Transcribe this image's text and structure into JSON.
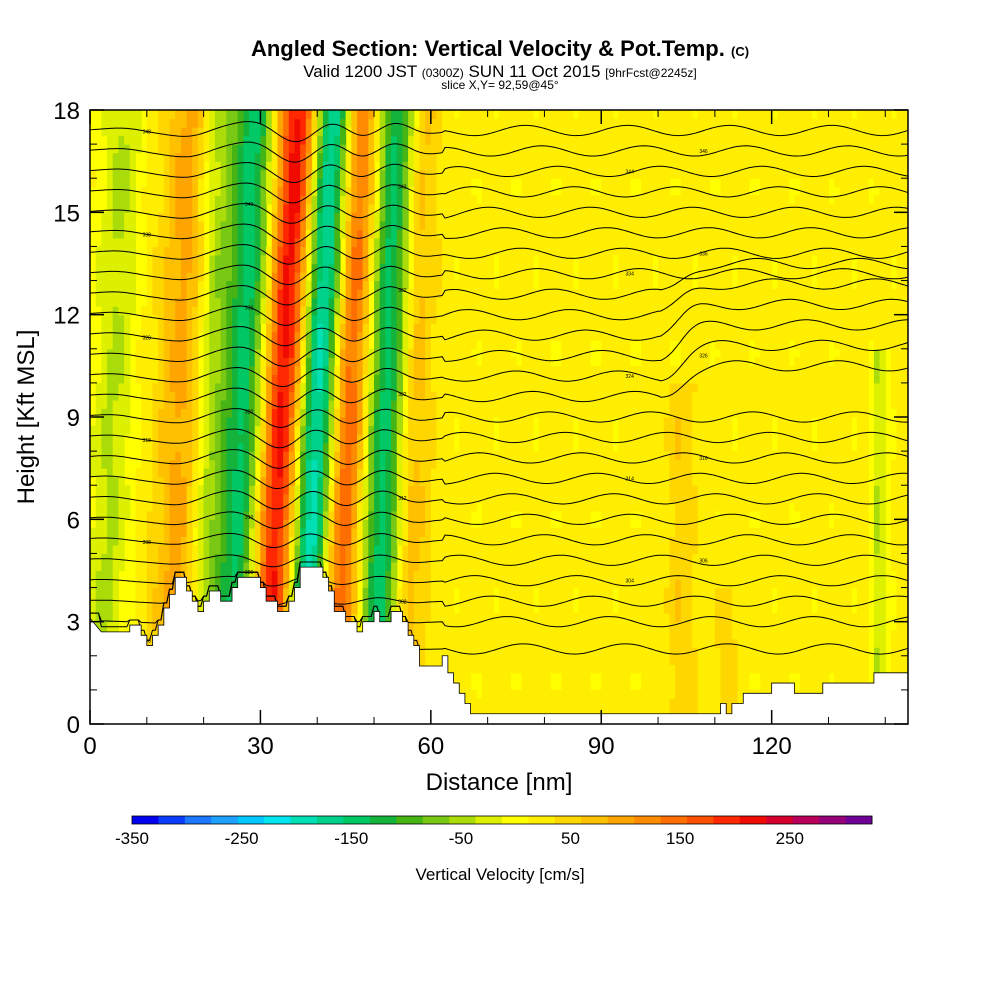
{
  "title": {
    "main": "Angled Section: Vertical Velocity & Pot.Temp.",
    "main_suffix": "(C)",
    "valid_a": "Valid 1200 JST",
    "valid_b": "(0300Z)",
    "valid_c": "SUN 11 Oct 2015",
    "valid_d": "[9hrFcst@2245z]",
    "slice": "slice X,Y= 92,59@45°"
  },
  "chart_data": {
    "type": "heatmap",
    "title": "Angled Section: Vertical Velocity & Pot.Temp.",
    "xlabel": "Distance [nm]",
    "ylabel": "Height [Kft MSL]",
    "xlim": [
      0,
      144
    ],
    "ylim": [
      0,
      18
    ],
    "xticks": [
      "0",
      "30",
      "60",
      "90",
      "120"
    ],
    "xtick_values": [
      0,
      30,
      60,
      90,
      120
    ],
    "yticks": [
      "0",
      "3",
      "6",
      "9",
      "12",
      "15",
      "18"
    ],
    "ytick_values": [
      0,
      3,
      6,
      9,
      12,
      15,
      18
    ],
    "colorbar": {
      "label": "Vertical Velocity [cm/s]",
      "ticks": [
        "-350",
        "-250",
        "-150",
        "-50",
        "50",
        "150",
        "250"
      ],
      "tick_values": [
        -350,
        -250,
        -150,
        -50,
        50,
        150,
        250
      ],
      "range": [
        -350,
        325
      ],
      "colors": [
        "#0000f0",
        "#0a3cff",
        "#1c78ff",
        "#1ea0ff",
        "#00c8ff",
        "#00e6f0",
        "#00e0b4",
        "#00d28c",
        "#00c864",
        "#14b43c",
        "#46b414",
        "#78c814",
        "#aadc0a",
        "#dcf000",
        "#ffff00",
        "#ffee00",
        "#ffd700",
        "#ffc000",
        "#ffa500",
        "#ff8c00",
        "#ff6e00",
        "#ff5000",
        "#ff2800",
        "#f00a00",
        "#d7002d",
        "#b9005a",
        "#960078",
        "#6e0096"
      ]
    },
    "bands": [
      {
        "x": 4,
        "w": 4,
        "tilt": 2,
        "value": -40,
        "zmax": 18
      },
      {
        "x": 9,
        "w": 3,
        "tilt": 2,
        "value": 25,
        "zmax": 18
      },
      {
        "x": 16,
        "w": 4,
        "tilt": 1.5,
        "value": 95,
        "zmax": 18
      },
      {
        "x": 21,
        "w": 3,
        "tilt": 1.5,
        "value": -40,
        "zmax": 18
      },
      {
        "x": 27,
        "w": 4,
        "tilt": 2,
        "value": -150,
        "zmax": 18
      },
      {
        "x": 34,
        "w": 4,
        "tilt": 3,
        "value": 240,
        "zmax": 18
      },
      {
        "x": 40,
        "w": 4,
        "tilt": 3,
        "value": -230,
        "zmax": 18
      },
      {
        "x": 45,
        "w": 3.5,
        "tilt": 2.5,
        "value": 190,
        "zmax": 18
      },
      {
        "x": 52,
        "w": 3.5,
        "tilt": 2,
        "value": -150,
        "zmax": 18
      },
      {
        "x": 57,
        "w": 3,
        "tilt": 1.5,
        "value": 80,
        "zmax": 18
      },
      {
        "x": 139,
        "w": 1.5,
        "tilt": 0,
        "value": -40,
        "zmax": 11
      },
      {
        "x": 104,
        "w": 3,
        "tilt": 0,
        "value": 55,
        "zmax": 10
      },
      {
        "x": 112,
        "w": 2,
        "tilt": 0,
        "value": 55,
        "zmax": 4
      }
    ],
    "terrain": [
      [
        0,
        3.1
      ],
      [
        2,
        2.7
      ],
      [
        7,
        2.7
      ],
      [
        7,
        2.9
      ],
      [
        9,
        2.9
      ],
      [
        9,
        2.6
      ],
      [
        10,
        2.6
      ],
      [
        10,
        2.3
      ],
      [
        11,
        2.3
      ],
      [
        11,
        2.6
      ],
      [
        12,
        2.6
      ],
      [
        12,
        2.9
      ],
      [
        13,
        2.9
      ],
      [
        13,
        3.4
      ],
      [
        14,
        3.4
      ],
      [
        14,
        3.8
      ],
      [
        15,
        3.8
      ],
      [
        15,
        4.3
      ],
      [
        17,
        4.3
      ],
      [
        17,
        3.9
      ],
      [
        18,
        3.9
      ],
      [
        18,
        3.6
      ],
      [
        19,
        3.6
      ],
      [
        19,
        3.3
      ],
      [
        20,
        3.3
      ],
      [
        20,
        3.6
      ],
      [
        21,
        3.6
      ],
      [
        21,
        3.9
      ],
      [
        23,
        3.9
      ],
      [
        23,
        3.6
      ],
      [
        25,
        3.6
      ],
      [
        25,
        4.0
      ],
      [
        26,
        4.0
      ],
      [
        26,
        4.3
      ],
      [
        30,
        4.3
      ],
      [
        30,
        4.0
      ],
      [
        31,
        4.0
      ],
      [
        31,
        3.6
      ],
      [
        33,
        3.6
      ],
      [
        33,
        3.3
      ],
      [
        35,
        3.3
      ],
      [
        35,
        3.6
      ],
      [
        36,
        3.6
      ],
      [
        36,
        4.0
      ],
      [
        37,
        4.0
      ],
      [
        37,
        4.6
      ],
      [
        41,
        4.6
      ],
      [
        41,
        4.3
      ],
      [
        42,
        4.3
      ],
      [
        42,
        3.9
      ],
      [
        43,
        3.9
      ],
      [
        43,
        3.3
      ],
      [
        45,
        3.3
      ],
      [
        45,
        3.0
      ],
      [
        47,
        3.0
      ],
      [
        47,
        2.7
      ],
      [
        48,
        2.7
      ],
      [
        48,
        3.0
      ],
      [
        50,
        3.0
      ],
      [
        50,
        3.3
      ],
      [
        51,
        3.3
      ],
      [
        51,
        3.0
      ],
      [
        53,
        3.0
      ],
      [
        53,
        3.3
      ],
      [
        55,
        3.3
      ],
      [
        55,
        3.0
      ],
      [
        56,
        3.0
      ],
      [
        56,
        2.6
      ],
      [
        57,
        2.6
      ],
      [
        57,
        2.3
      ],
      [
        58,
        2.3
      ],
      [
        58,
        1.7
      ],
      [
        62,
        1.7
      ],
      [
        62,
        2.0
      ],
      [
        63,
        2.0
      ],
      [
        63,
        1.5
      ],
      [
        64,
        1.5
      ],
      [
        64,
        1.2
      ],
      [
        65,
        1.2
      ],
      [
        65,
        0.9
      ],
      [
        66,
        0.9
      ],
      [
        66,
        0.6
      ],
      [
        67,
        0.6
      ],
      [
        67,
        0.3
      ],
      [
        111,
        0.3
      ],
      [
        111,
        0.6
      ],
      [
        112,
        0.6
      ],
      [
        112,
        0.3
      ],
      [
        113,
        0.3
      ],
      [
        113,
        0.6
      ],
      [
        115,
        0.6
      ],
      [
        115,
        0.9
      ],
      [
        120,
        0.9
      ],
      [
        120,
        1.2
      ],
      [
        124,
        1.2
      ],
      [
        124,
        0.9
      ],
      [
        129,
        0.9
      ],
      [
        129,
        1.2
      ],
      [
        138,
        1.2
      ],
      [
        138,
        1.5
      ],
      [
        144,
        1.5
      ],
      [
        144,
        1.3
      ]
    ],
    "isentrope_levels": [
      2.2,
      3.0,
      3.6,
      4.2,
      4.8,
      5.4,
      6.0,
      6.6,
      7.2,
      7.8,
      8.4,
      9.0,
      9.6,
      10.2,
      10.8,
      11.4,
      12.0,
      12.6,
      13.2,
      13.8,
      14.4,
      15.0,
      15.6,
      16.2,
      16.8,
      17.4
    ],
    "isentrope_labels": [
      "298",
      "300",
      "302",
      "304",
      "306",
      "308",
      "310",
      "312",
      "314",
      "316",
      "318",
      "320",
      "322",
      "324",
      "326",
      "328",
      "330",
      "332",
      "334",
      "336",
      "338",
      "340",
      "342",
      "344",
      "346",
      "348"
    ]
  }
}
